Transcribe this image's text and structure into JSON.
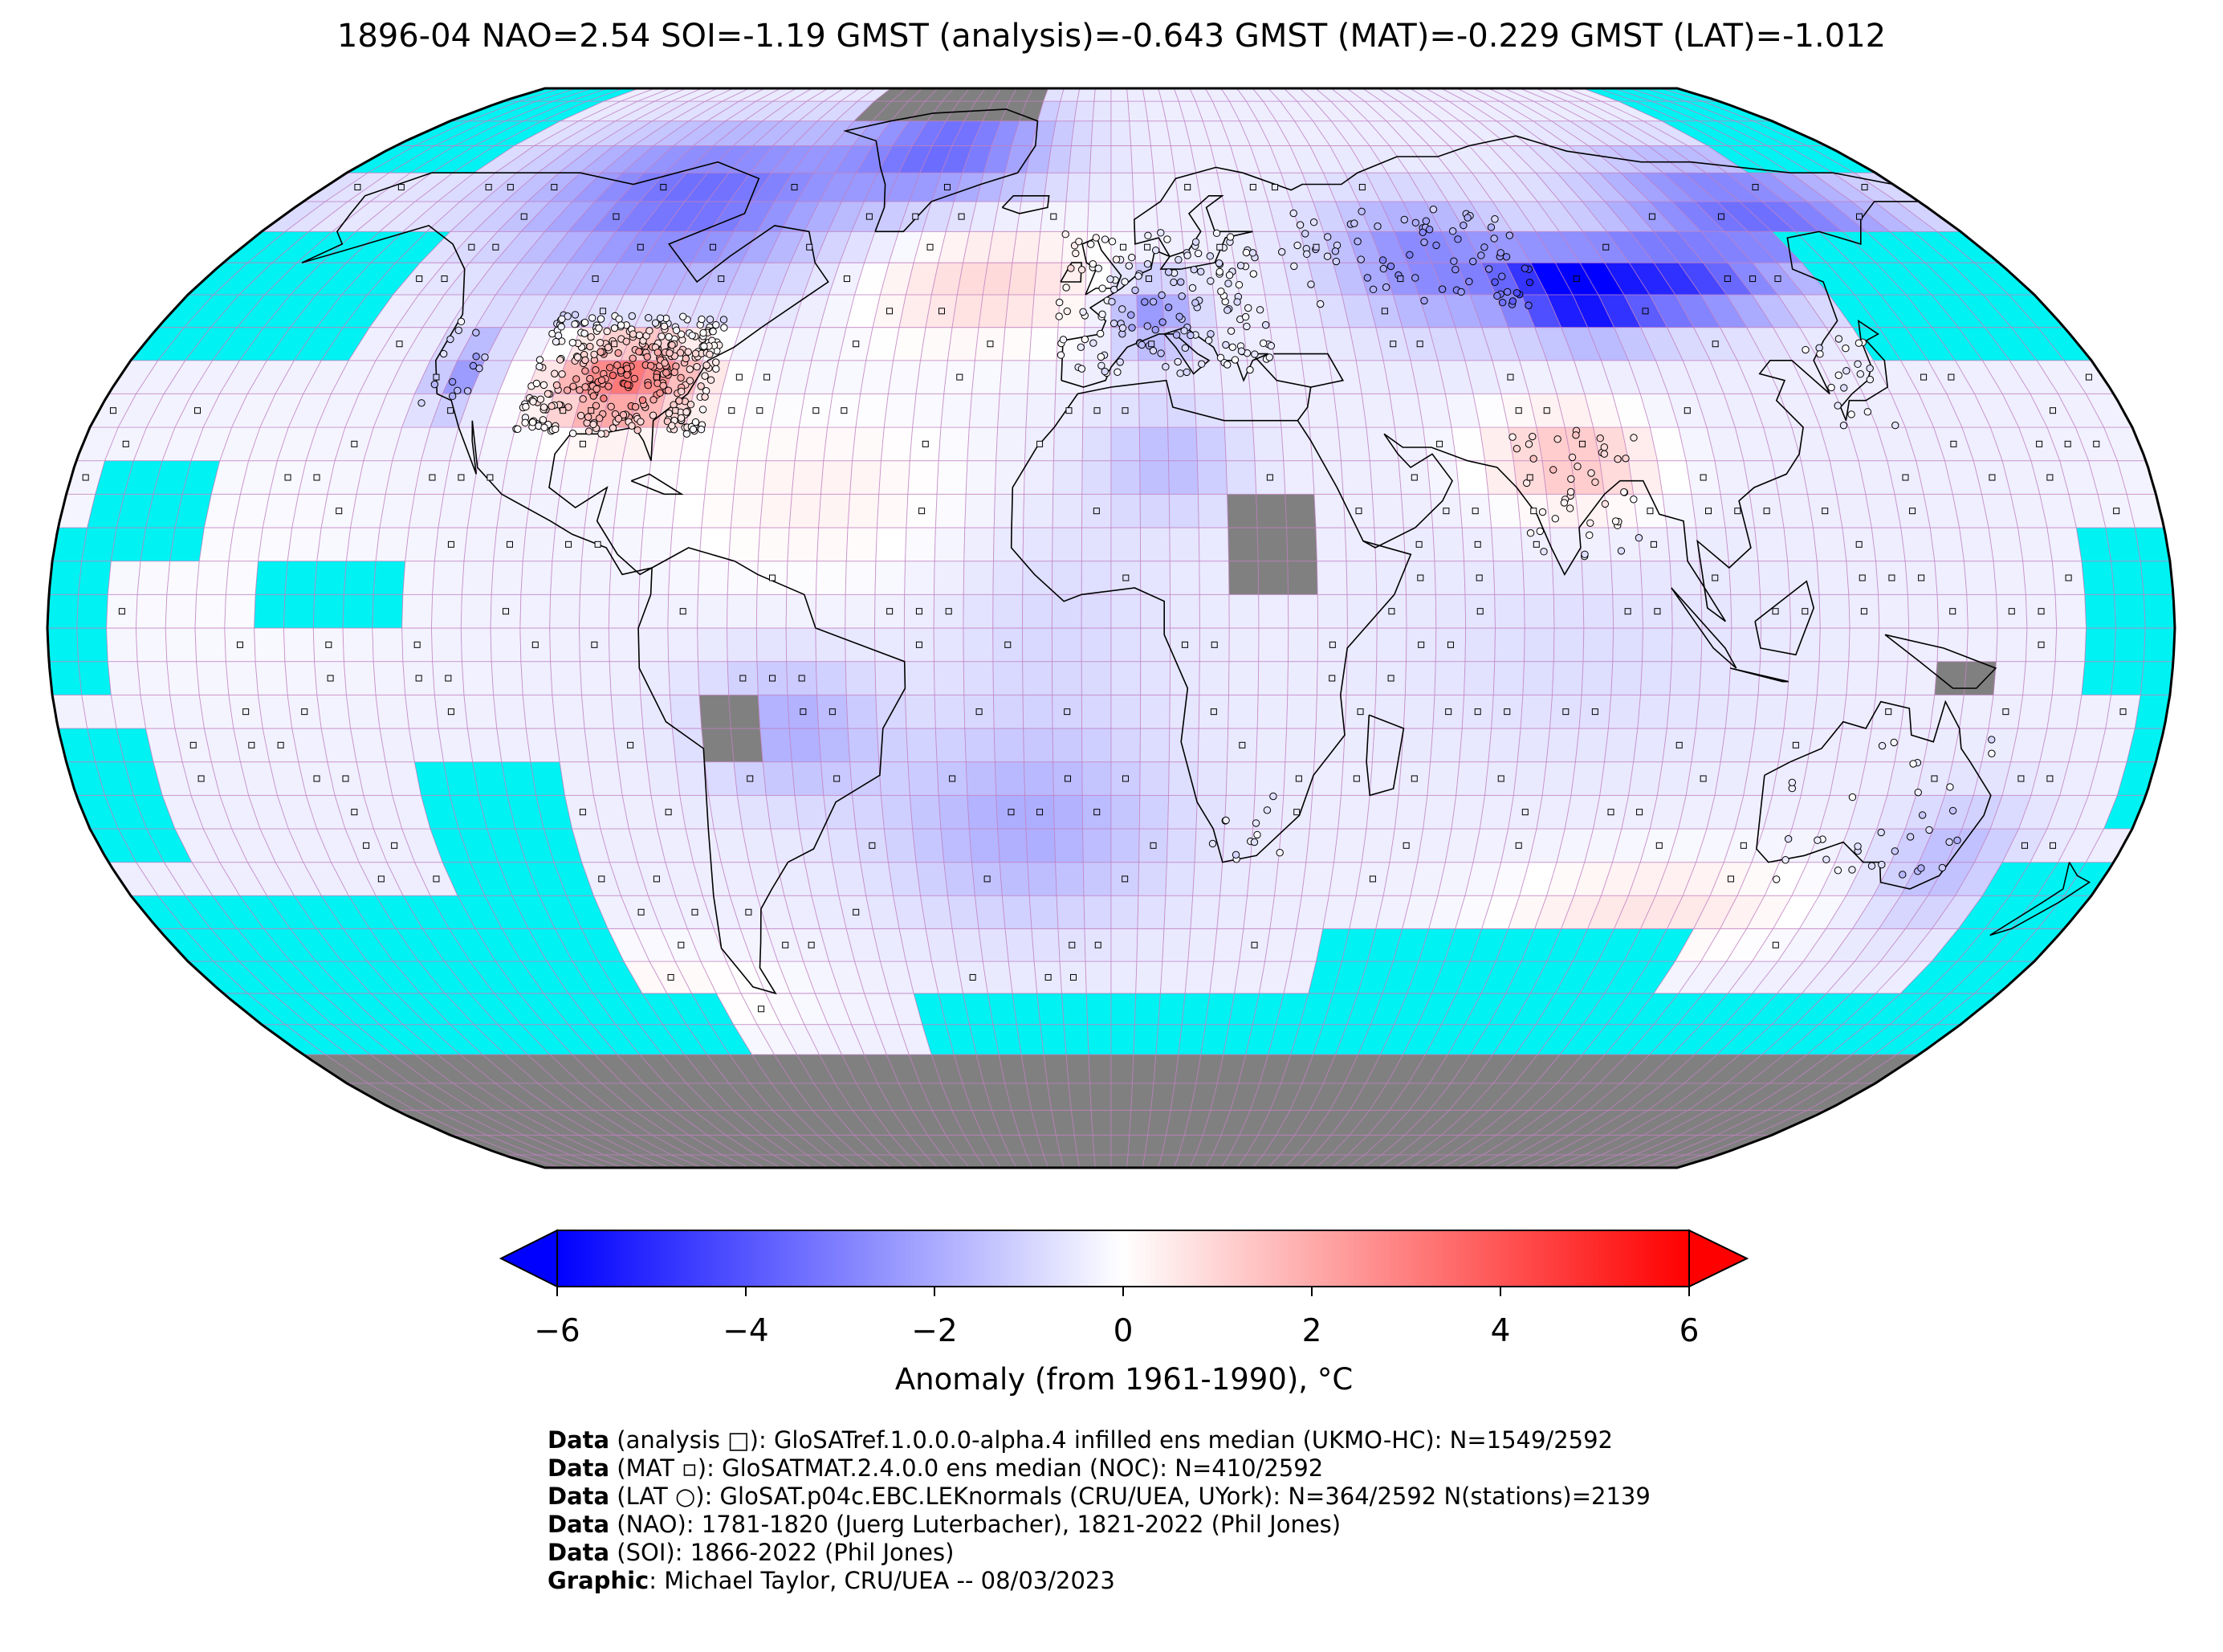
{
  "title": "1896-04 NAO=2.54 SOI=-1.19 GMST (analysis)=-0.643 GMST (MAT)=-0.229 GMST (LAT)=-1.012",
  "colorbar": {
    "label": "Anomaly (from 1961-1990), °C",
    "range": [
      -6,
      6
    ],
    "ticks": [
      "−6",
      "−4",
      "−2",
      "0",
      "2",
      "4",
      "6"
    ],
    "tick_values": [
      -6,
      -4,
      -2,
      0,
      2,
      4,
      6
    ],
    "colors": {
      "low": "#0000ff",
      "mid": "#ffffff",
      "high": "#ff0000"
    }
  },
  "map": {
    "projection": "Robinson",
    "ocean_no_data_color": "#00f2f2",
    "land_no_data_color": "#808080",
    "grid_line_color": "#c080c0"
  },
  "credits": [
    {
      "bold": "Data",
      "text": " (analysis □): GloSATref.1.0.0.0-alpha.4 infilled ens median (UKMO-HC): N=1549/2592"
    },
    {
      "bold": "Data",
      "text": " (MAT ▫): GloSATMAT.2.4.0.0 ens median (NOC): N=410/2592"
    },
    {
      "bold": "Data",
      "text": " (LAT ○): GloSAT.p04c.EBC.LEKnormals (CRU/UEA, UYork): N=364/2592 N(stations)=2139"
    },
    {
      "bold": "Data",
      "text": " (NAO): 1781-1820 (Juerg Luterbacher), 1821-2022 (Phil Jones)"
    },
    {
      "bold": "Data",
      "text": " (SOI): 1866-2022 (Phil Jones)"
    },
    {
      "bold": "Graphic",
      "text": ": Michael Taylor, CRU/UEA -- 08/03/2023"
    }
  ]
}
